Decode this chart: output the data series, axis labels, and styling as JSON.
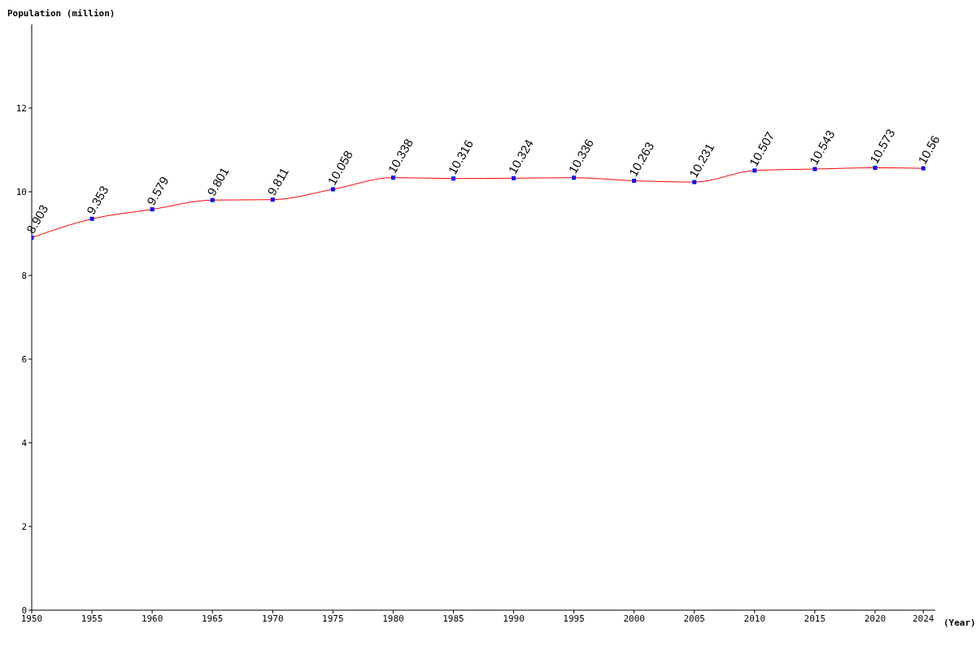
{
  "chart_data": {
    "type": "line",
    "ylabel": "Population (million)",
    "xlabel": "(Year)",
    "x": [
      1950,
      1955,
      1960,
      1965,
      1970,
      1975,
      1980,
      1985,
      1990,
      1995,
      2000,
      2005,
      2010,
      2015,
      2020,
      2024
    ],
    "series": [
      {
        "color": "#ff0000",
        "values": [
          8.903,
          9.353,
          9.579,
          9.801,
          9.811,
          10.058,
          10.338,
          10.316,
          10.324,
          10.336,
          10.263,
          10.231,
          10.507,
          10.543,
          10.573,
          10.56
        ]
      }
    ],
    "xlim": [
      1950,
      2025
    ],
    "xticks": [
      1950,
      1955,
      1960,
      1965,
      1970,
      1975,
      1980,
      1985,
      1990,
      1995,
      2000,
      2005,
      2010,
      2015,
      2020,
      2024
    ],
    "ylim": [
      0,
      14
    ],
    "yticks": [
      0,
      2,
      4,
      6,
      8,
      10,
      12
    ],
    "grid": false,
    "legend": false,
    "marker": "square",
    "data_labels": true
  }
}
